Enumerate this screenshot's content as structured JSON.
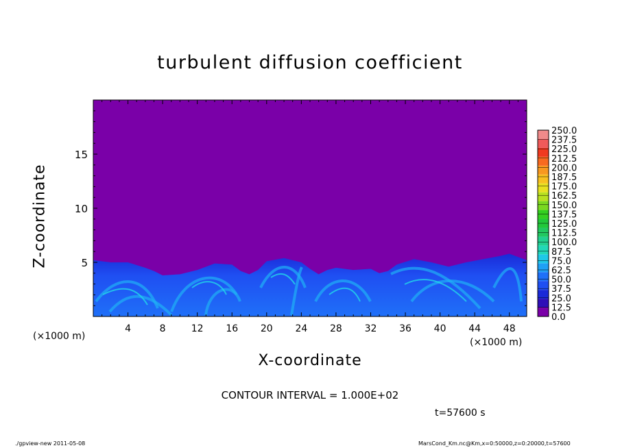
{
  "chart_data": {
    "type": "heatmap",
    "title": "turbulent diffusion coefficient",
    "xlabel": "X-coordinate",
    "ylabel": "Z-coordinate",
    "x_unit_label": "(×1000 m)",
    "x_ticks": [
      "4",
      "8",
      "12",
      "16",
      "20",
      "24",
      "28",
      "32",
      "36",
      "40",
      "44",
      "48"
    ],
    "y_ticks": [
      "5",
      "10",
      "15"
    ],
    "xlim": [
      0,
      50
    ],
    "ylim": [
      0,
      20
    ],
    "colorbar_labels": [
      "0.0",
      "12.5",
      "25.0",
      "37.5",
      "50.0",
      "62.5",
      "75.0",
      "87.5",
      "100.0",
      "112.5",
      "125.0",
      "137.5",
      "150.0",
      "162.5",
      "175.0",
      "187.5",
      "200.0",
      "212.5",
      "225.0",
      "237.5",
      "250.0"
    ],
    "colorbar_colors": [
      "#7a00a8",
      "#2f0fb8",
      "#1a2ad8",
      "#1f4ff2",
      "#1f70f8",
      "#1fa0f5",
      "#1fc8e8",
      "#22d8b8",
      "#22d090",
      "#22c860",
      "#22c83a",
      "#33d020",
      "#7ad820",
      "#b8e020",
      "#e8e020",
      "#f8c020",
      "#f89820",
      "#f86a20",
      "#f03a20",
      "#f05a5a",
      "#f08a8a"
    ],
    "background_color": "#7a00a8",
    "contour_interval": "CONTOUR INTERVAL = 1.000E+02",
    "time_label": "t=57600 s"
  },
  "footer": {
    "left": "./gpview-new  2011-05-08",
    "right": "MarsCond_Km.nc@Km,x=0:50000,z=0:20000,t=57600"
  }
}
